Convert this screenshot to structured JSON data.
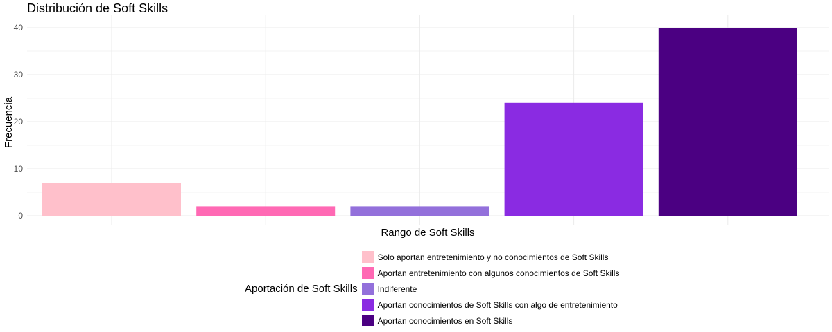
{
  "chart_data": {
    "type": "bar",
    "title": "Distribución de Soft Skills",
    "xlabel": "Rango de Soft Skills",
    "ylabel": "Frecuencia",
    "ylim": [
      0,
      40
    ],
    "yticks": [
      0,
      10,
      20,
      30,
      40
    ],
    "grid": true,
    "legend_title": "Aportación de Soft Skills",
    "legend_position": "bottom",
    "categories": [
      "Solo aportan entretenimiento y no conocimientos de Soft Skills",
      "Aportan entretenimiento con algunos conocimientos de Soft Skills",
      "Indiferente",
      "Aportan conocimientos de Soft Skills con algo de entretenimiento",
      "Aportan conocimientos en Soft Skills"
    ],
    "values": [
      7,
      2,
      2,
      24,
      40
    ],
    "colors": [
      "#FFC0CB",
      "#FF69B4",
      "#9370DB",
      "#8A2BE2",
      "#4B0082"
    ]
  }
}
